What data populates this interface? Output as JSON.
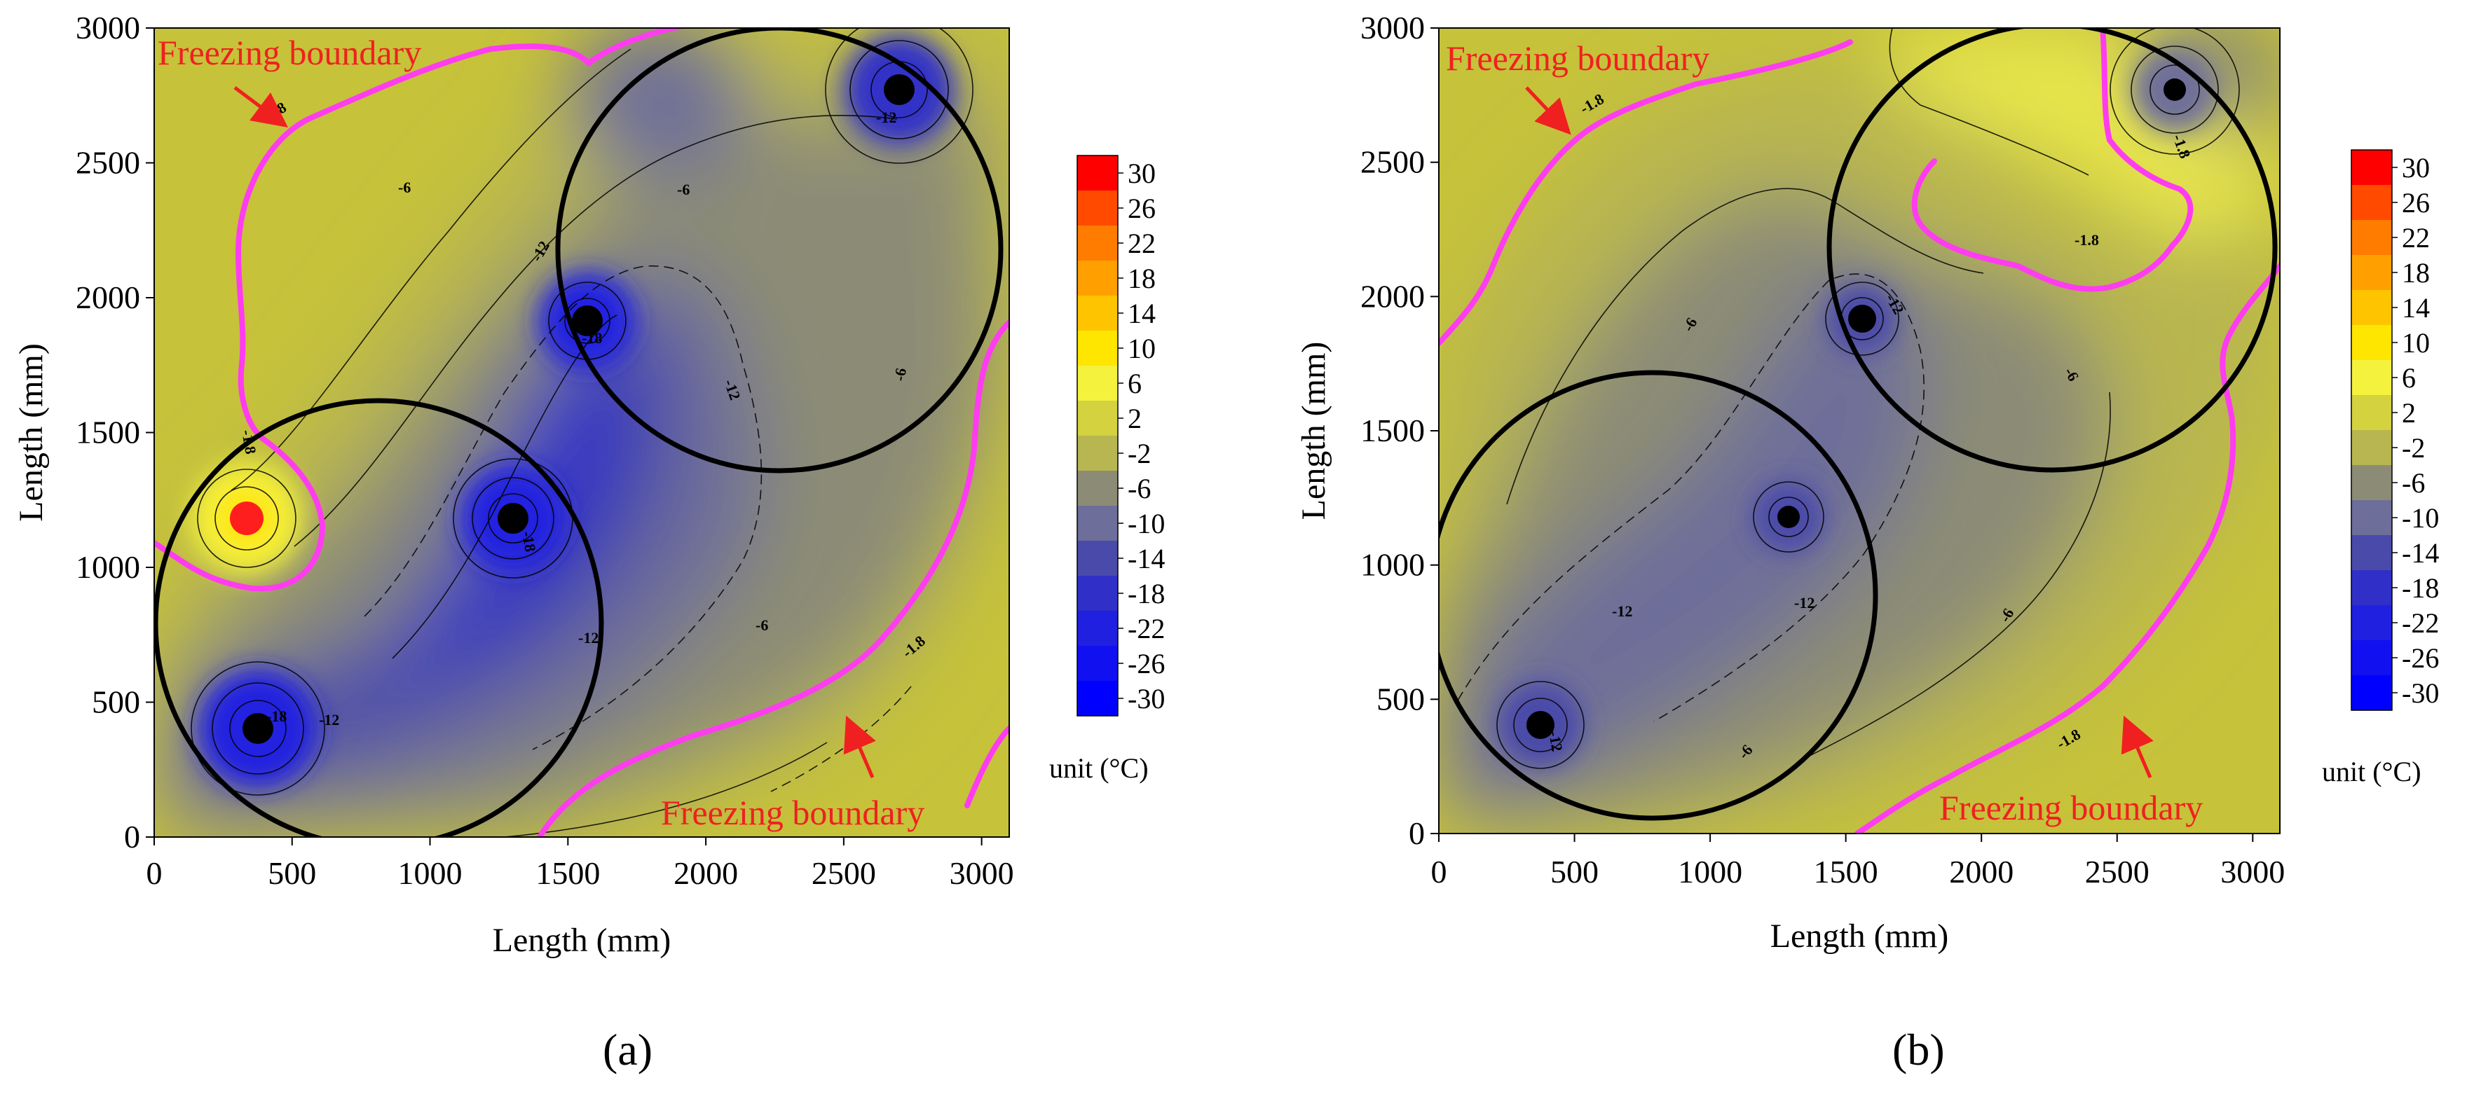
{
  "colors": {
    "warm_outer": "#c6c23a",
    "freezing_line": "#ff3cf0",
    "annotation": "#f02020",
    "hole": "#000000",
    "heater": "#ff1e1e"
  },
  "legend": {
    "values": [
      "30",
      "26",
      "22",
      "18",
      "14",
      "10",
      "6",
      "2",
      "-2",
      "-6",
      "-10",
      "-14",
      "-18",
      "-22",
      "-26",
      "-30"
    ],
    "unit_label": "unit (°C)",
    "colors": [
      "#ff0000",
      "#ff4a00",
      "#ff7c00",
      "#ffa000",
      "#ffc400",
      "#ffe600",
      "#f4f23c",
      "#d4d23e",
      "#b8b650",
      "#8c8c76",
      "#6e6e9a",
      "#4a4aaa",
      "#3030c8",
      "#2020e0",
      "#1010f0",
      "#0000ff"
    ]
  },
  "chart_data": [
    {
      "type": "contour",
      "panel_label": "(a)",
      "xlabel": "Length (mm)",
      "ylabel": "Length (mm)",
      "xlim": [
        0,
        3100
      ],
      "ylim": [
        0,
        3000
      ],
      "xticks": [
        "0",
        "500",
        "1000",
        "1500",
        "2000",
        "2500",
        "3000"
      ],
      "yticks": [
        "0",
        "500",
        "1000",
        "1500",
        "2000",
        "2500",
        "3000"
      ],
      "contour_levels": [
        -30,
        -26,
        -22,
        -18,
        -14,
        -10,
        -6,
        -2,
        2,
        6,
        10,
        14,
        18,
        22,
        26,
        30
      ],
      "freezing_isotherm": -1.8,
      "freezing_annotations": [
        "Freezing boundary",
        "Freezing boundary"
      ],
      "contour_labels": [
        "-1.8",
        "-1.8",
        "-1.8",
        "-6",
        "-6",
        "-6",
        "-6",
        "-12",
        "-12",
        "-12",
        "-12",
        "-12",
        "-18",
        "-18",
        "-18"
      ],
      "freezing_points": [
        {
          "x": 370,
          "y": 400,
          "temp": -30
        },
        {
          "x": 1300,
          "y": 1190,
          "temp": -30
        },
        {
          "x": 1570,
          "y": 1930,
          "temp": -30
        },
        {
          "x": 2720,
          "y": 2780,
          "temp": -30
        }
      ],
      "heat_source": {
        "x": 330,
        "y": 1180,
        "temp": 30
      },
      "circles": [
        {
          "cx": 820,
          "cy": 810,
          "r": 820
        },
        {
          "cx": 2280,
          "cy": 2170,
          "r": 810
        }
      ]
    },
    {
      "type": "contour",
      "panel_label": "(b)",
      "xlabel": "Length (mm)",
      "ylabel": "Length (mm)",
      "xlim": [
        0,
        3100
      ],
      "ylim": [
        0,
        3000
      ],
      "xticks": [
        "0",
        "500",
        "1000",
        "1500",
        "2000",
        "2500",
        "3000"
      ],
      "yticks": [
        "0",
        "500",
        "1000",
        "1500",
        "2000",
        "2500",
        "3000"
      ],
      "contour_levels": [
        -30,
        -26,
        -22,
        -18,
        -14,
        -10,
        -6,
        -2,
        2,
        6,
        10,
        14,
        18,
        22,
        26,
        30
      ],
      "freezing_isotherm": -1.8,
      "freezing_annotations": [
        "Freezing boundary",
        "Freezing boundary"
      ],
      "contour_labels": [
        "-1.8",
        "-1.8",
        "-1.8",
        "-1.8",
        "-6",
        "-6",
        "-6",
        "-6",
        "-12",
        "-12",
        "-12",
        "-12"
      ],
      "freezing_points": [
        {
          "x": 370,
          "y": 400,
          "temp": -14
        },
        {
          "x": 1290,
          "y": 1180,
          "temp": -14
        },
        {
          "x": 1560,
          "y": 1920,
          "temp": -14
        },
        {
          "x": 2720,
          "y": 2770,
          "temp": -14
        }
      ],
      "circles": [
        {
          "cx": 800,
          "cy": 800,
          "r": 790
        },
        {
          "cx": 2310,
          "cy": 2170,
          "r": 790
        }
      ]
    }
  ]
}
